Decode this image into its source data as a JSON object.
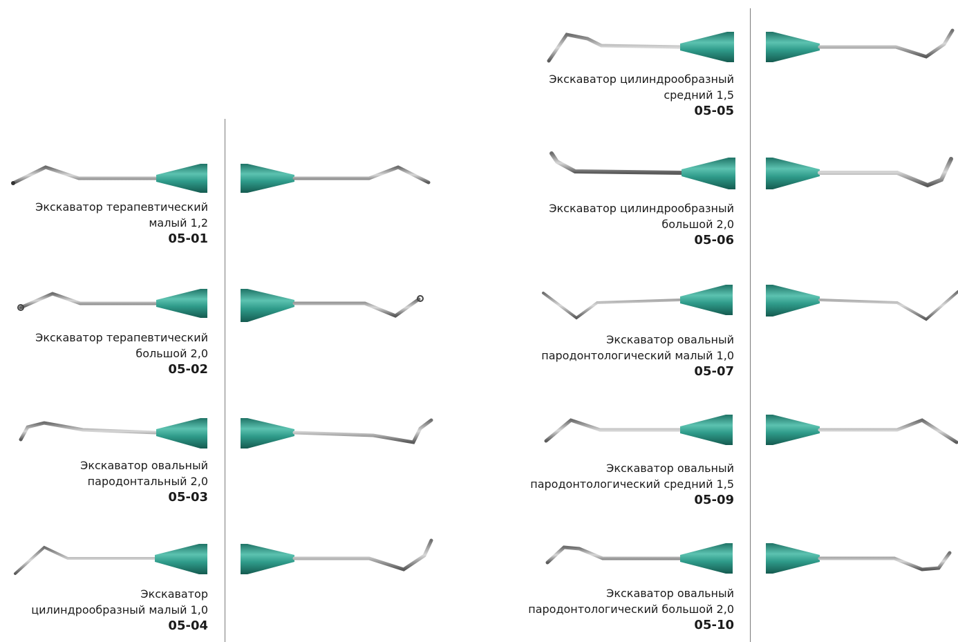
{
  "items": [
    {
      "id": "05-01",
      "lines": [
        "Экскаватор терапевтический",
        "малый 1,2"
      ],
      "code": "05-01",
      "icon": "excavator-icon"
    },
    {
      "id": "05-02",
      "lines": [
        "Экскаватор терапевтический",
        "большой 2,0"
      ],
      "code": "05-02",
      "icon": "excavator-icon"
    },
    {
      "id": "05-03",
      "lines": [
        "Экскаватор овальный",
        "пародонтальный 2,0"
      ],
      "code": "05-03",
      "icon": "excavator-icon"
    },
    {
      "id": "05-04",
      "lines": [
        "Экскаватор",
        "цилиндрообразный малый 1,0"
      ],
      "code": "05-04",
      "icon": "excavator-icon"
    },
    {
      "id": "05-05",
      "lines": [
        "Экскаватор цилиндрообразный",
        "средний 1,5"
      ],
      "code": "05-05",
      "icon": "excavator-icon"
    },
    {
      "id": "05-06",
      "lines": [
        "Экскаватор цилиндрообразный",
        "большой 2,0"
      ],
      "code": "05-06",
      "icon": "excavator-icon"
    },
    {
      "id": "05-07",
      "lines": [
        "Экскаватор овальный",
        "пародонтологический малый 1,0"
      ],
      "code": "05-07",
      "icon": "excavator-icon"
    },
    {
      "id": "05-09",
      "lines": [
        "Экскаватор овальный",
        "пародонтологический средний 1,5"
      ],
      "code": "05-09",
      "icon": "excavator-icon"
    },
    {
      "id": "05-10",
      "lines": [
        "Экскаватор овальный",
        "пародонтологический большой 2,0"
      ],
      "code": "05-10",
      "icon": "excavator-icon"
    }
  ],
  "colors": {
    "handle": "#2f9b8a",
    "handle_dark": "#1c6f62",
    "steel": "#9a9a9a",
    "steel_dark": "#555555",
    "divider": "#7a7a7a"
  }
}
